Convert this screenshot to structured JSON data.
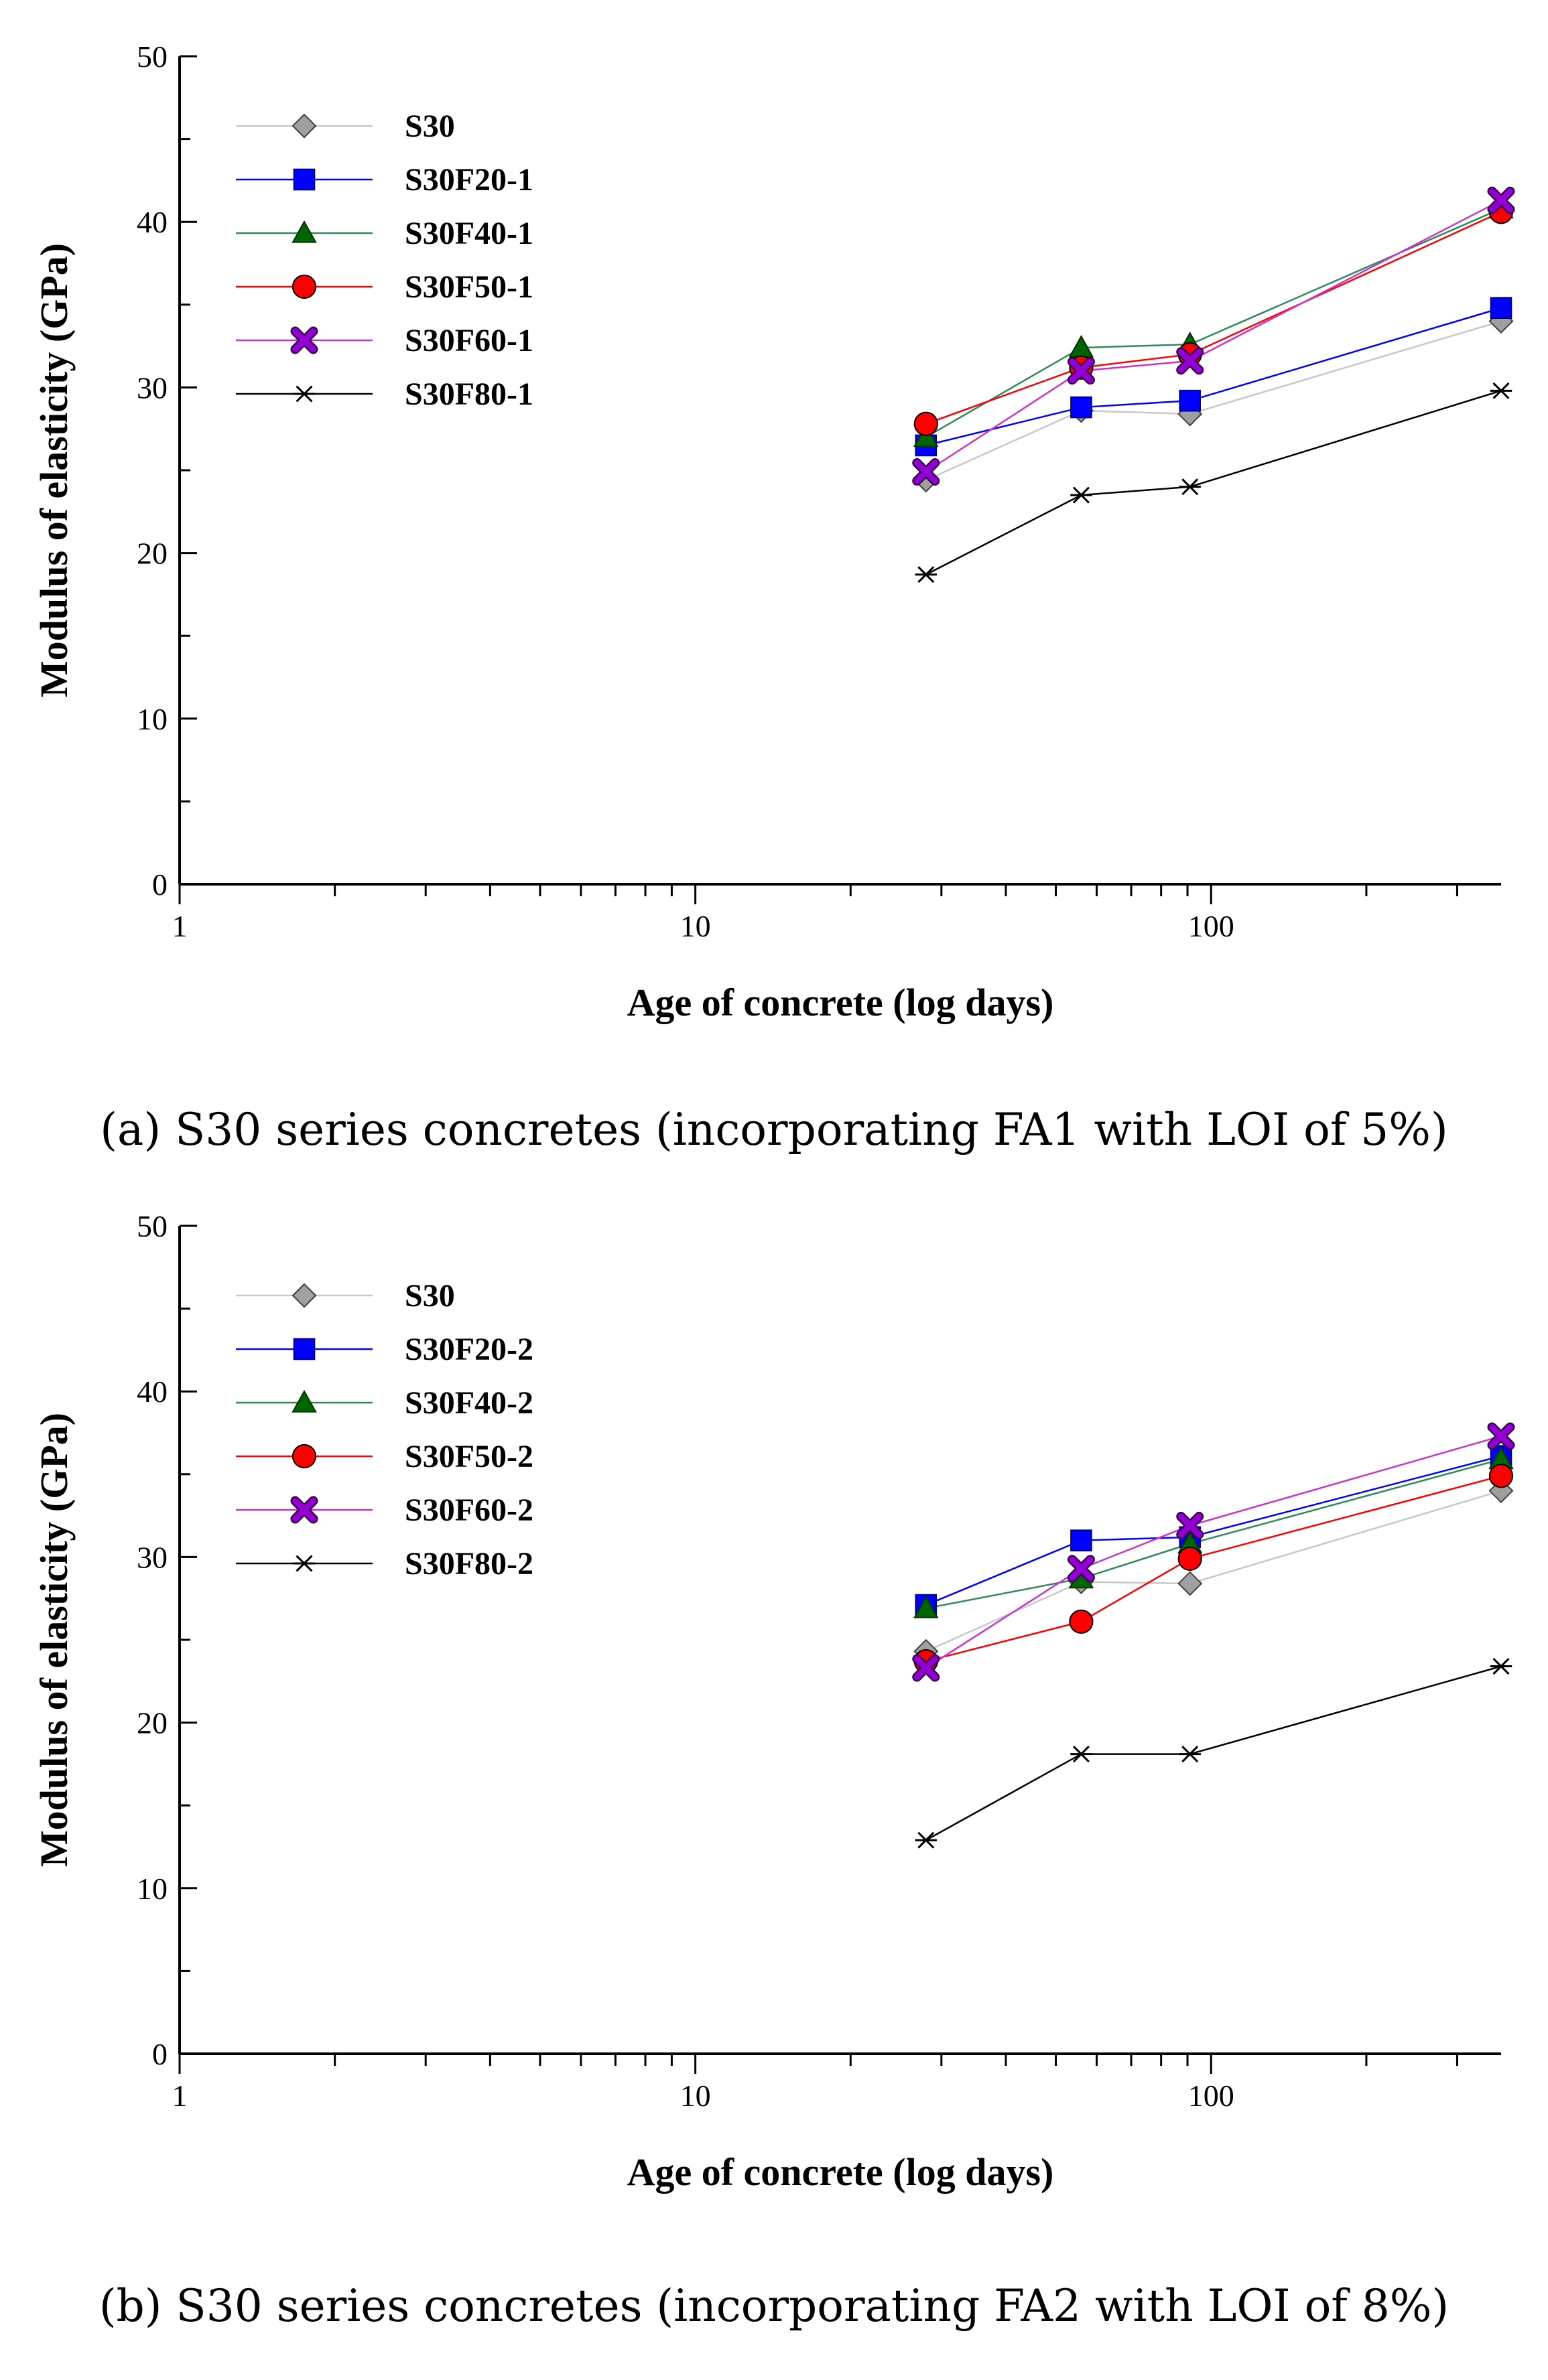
{
  "chart_data": [
    {
      "type": "line",
      "panel": "a",
      "caption": "(a) S30 series concretes (incorporating FA1 with LOI of 5%)",
      "xlabel": "Age of concrete (log days)",
      "ylabel": "Modulus of elasticity (GPa)",
      "xscale": "log",
      "xlim": [
        1,
        365
      ],
      "ylim": [
        0,
        50
      ],
      "yticks": [
        0,
        10,
        20,
        30,
        40,
        50
      ],
      "xtick_labels": [
        "1",
        "10",
        "100"
      ],
      "x": [
        28,
        56,
        91,
        365
      ],
      "legend_position": "top-left",
      "series": [
        {
          "name": "S30",
          "marker": "diamond",
          "color": "#a0a0a0",
          "line_color": "#c8c8c8",
          "values": [
            24.4,
            28.6,
            28.4,
            34.0
          ]
        },
        {
          "name": "S30F20-1",
          "marker": "square",
          "color": "#0000ff",
          "line_color": "#0000ff",
          "values": [
            26.5,
            28.8,
            29.2,
            34.8
          ]
        },
        {
          "name": "S30F40-1",
          "marker": "triangle",
          "color": "#006400",
          "line_color": "#2e8b57",
          "values": [
            27.0,
            32.4,
            32.6,
            40.8
          ]
        },
        {
          "name": "S30F50-1",
          "marker": "circle",
          "color": "#ff0000",
          "line_color": "#ff0000",
          "values": [
            27.8,
            31.2,
            32.0,
            40.6
          ]
        },
        {
          "name": "S30F60-1",
          "marker": "x",
          "color": "#9400d3",
          "line_color": "#cc33cc",
          "values": [
            24.9,
            31.0,
            31.6,
            41.3
          ]
        },
        {
          "name": "S30F80-1",
          "marker": "asterisk",
          "color": "#000000",
          "line_color": "#000000",
          "values": [
            18.7,
            23.5,
            24.0,
            29.8
          ]
        }
      ]
    },
    {
      "type": "line",
      "panel": "b",
      "caption": "(b) S30 series concretes (incorporating FA2 with LOI of 8%)",
      "xlabel": "Age of concrete (log days)",
      "ylabel": "Modulus of elasticity (GPa)",
      "xscale": "log",
      "xlim": [
        1,
        365
      ],
      "ylim": [
        0,
        50
      ],
      "yticks": [
        0,
        10,
        20,
        30,
        40,
        50
      ],
      "xtick_labels": [
        "1",
        "10",
        "100"
      ],
      "x": [
        28,
        56,
        91,
        365
      ],
      "legend_position": "top-left",
      "series": [
        {
          "name": "S30",
          "marker": "diamond",
          "color": "#a0a0a0",
          "line_color": "#c8c8c8",
          "values": [
            24.3,
            28.5,
            28.4,
            34.0
          ]
        },
        {
          "name": "S30F20-2",
          "marker": "square",
          "color": "#0000ff",
          "line_color": "#0000ff",
          "values": [
            27.1,
            31.0,
            31.2,
            36.1
          ]
        },
        {
          "name": "S30F40-2",
          "marker": "triangle",
          "color": "#006400",
          "line_color": "#2e8b57",
          "values": [
            26.9,
            28.7,
            30.8,
            35.9
          ]
        },
        {
          "name": "S30F50-2",
          "marker": "circle",
          "color": "#ff0000",
          "line_color": "#ff0000",
          "values": [
            23.7,
            26.1,
            29.9,
            34.9
          ]
        },
        {
          "name": "S30F60-2",
          "marker": "x",
          "color": "#9400d3",
          "line_color": "#cc33cc",
          "values": [
            23.3,
            29.3,
            31.9,
            37.3
          ]
        },
        {
          "name": "S30F80-2",
          "marker": "asterisk",
          "color": "#000000",
          "line_color": "#000000",
          "values": [
            12.9,
            18.1,
            18.1,
            23.4
          ]
        }
      ]
    }
  ]
}
